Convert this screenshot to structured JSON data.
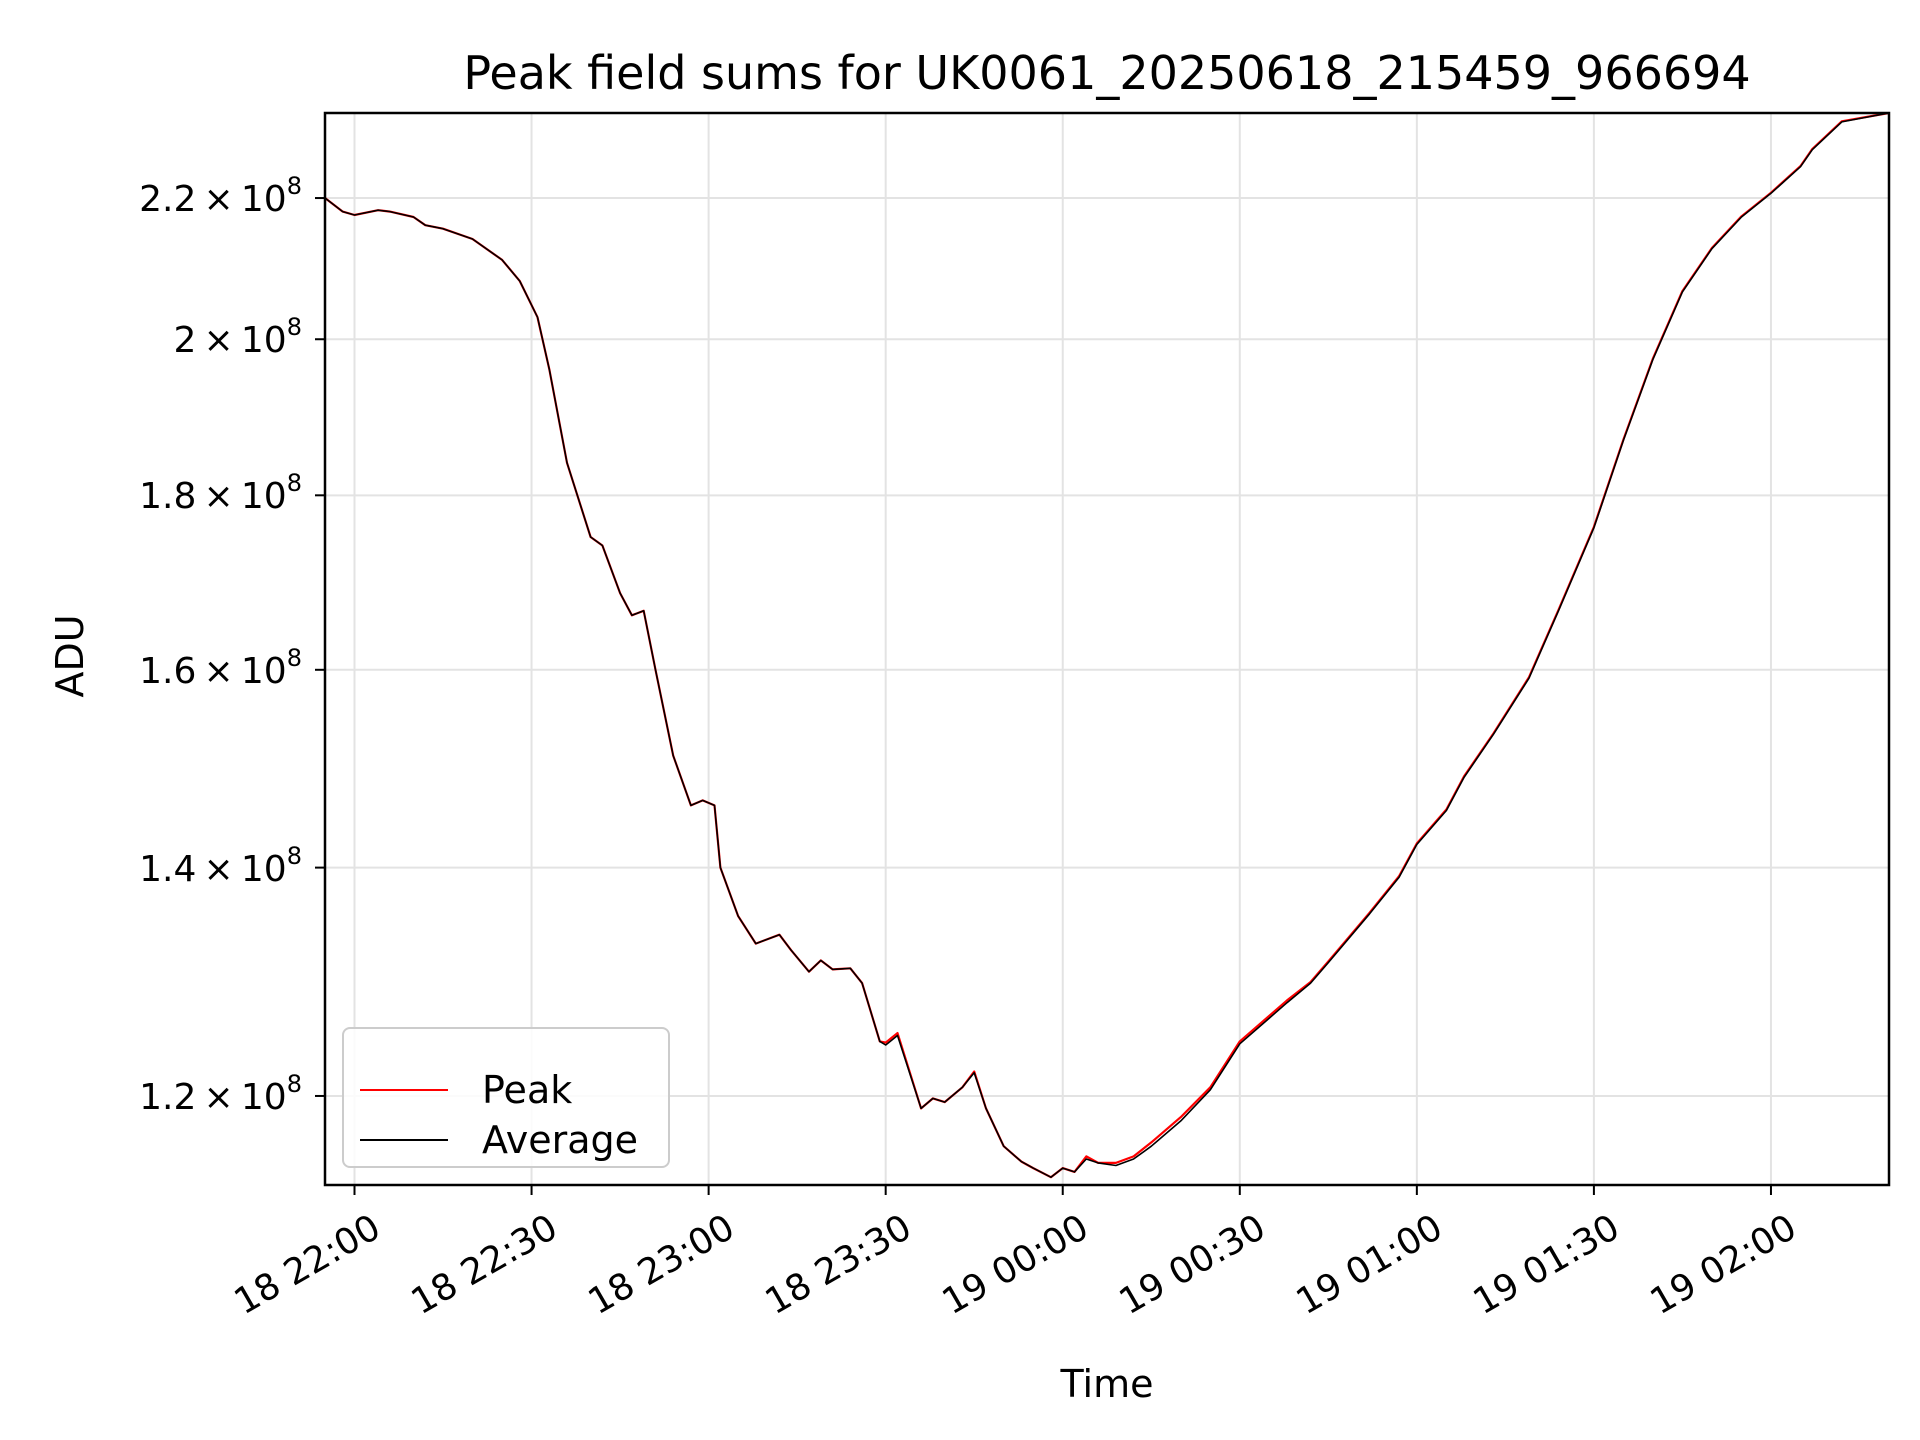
{
  "chart_data": {
    "type": "line",
    "title": "Peak field sums for UK0061_20250618_215459_966694",
    "xlabel": "Time",
    "ylabel": "ADU",
    "y_scale": "log",
    "xlim": [
      "2025-06-18 21:55",
      "2025-06-19 02:20"
    ],
    "ylim": [
      113000000,
      233000000
    ],
    "grid": true,
    "legend_position": "lower-left",
    "x_ticks": [
      {
        "time": "2025-06-18 22:00",
        "label": "18 22:00"
      },
      {
        "time": "2025-06-18 22:30",
        "label": "18 22:30"
      },
      {
        "time": "2025-06-18 23:00",
        "label": "18 23:00"
      },
      {
        "time": "2025-06-18 23:30",
        "label": "18 23:30"
      },
      {
        "time": "2025-06-19 00:00",
        "label": "19 00:00"
      },
      {
        "time": "2025-06-19 00:30",
        "label": "19 00:30"
      },
      {
        "time": "2025-06-19 01:00",
        "label": "19 01:00"
      },
      {
        "time": "2025-06-19 01:30",
        "label": "19 01:30"
      },
      {
        "time": "2025-06-19 02:00",
        "label": "19 02:00"
      }
    ],
    "y_ticks": [
      {
        "value": 120000000,
        "mantissa": "1.2",
        "base": "10",
        "exponent": "8"
      },
      {
        "value": 140000000,
        "mantissa": "1.4",
        "base": "10",
        "exponent": "8"
      },
      {
        "value": 160000000,
        "mantissa": "1.6",
        "base": "10",
        "exponent": "8"
      },
      {
        "value": 180000000,
        "mantissa": "1.8",
        "base": "10",
        "exponent": "8"
      },
      {
        "value": 200000000,
        "mantissa": "2",
        "base": "10",
        "exponent": "8"
      },
      {
        "value": 220000000,
        "mantissa": "2.2",
        "base": "10",
        "exponent": "8"
      }
    ],
    "x": [
      "2025-06-18 21:55",
      "2025-06-18 21:58",
      "2025-06-18 22:00",
      "2025-06-18 22:04",
      "2025-06-18 22:06",
      "2025-06-18 22:10",
      "2025-06-18 22:12",
      "2025-06-18 22:15",
      "2025-06-18 22:20",
      "2025-06-18 22:25",
      "2025-06-18 22:28",
      "2025-06-18 22:31",
      "2025-06-18 22:33",
      "2025-06-18 22:36",
      "2025-06-18 22:40",
      "2025-06-18 22:42",
      "2025-06-18 22:45",
      "2025-06-18 22:47",
      "2025-06-18 22:49",
      "2025-06-18 22:51",
      "2025-06-18 22:54",
      "2025-06-18 22:57",
      "2025-06-18 22:59",
      "2025-06-18 23:01",
      "2025-06-18 23:02",
      "2025-06-18 23:05",
      "2025-06-18 23:08",
      "2025-06-18 23:12",
      "2025-06-18 23:14",
      "2025-06-18 23:17",
      "2025-06-18 23:19",
      "2025-06-18 23:21",
      "2025-06-18 23:24",
      "2025-06-18 23:26",
      "2025-06-18 23:29",
      "2025-06-18 23:30",
      "2025-06-18 23:32",
      "2025-06-18 23:36",
      "2025-06-18 23:38",
      "2025-06-18 23:40",
      "2025-06-18 23:43",
      "2025-06-18 23:45",
      "2025-06-18 23:47",
      "2025-06-18 23:50",
      "2025-06-18 23:53",
      "2025-06-18 23:55",
      "2025-06-18 23:58",
      "2025-06-19 00:00",
      "2025-06-19 00:02",
      "2025-06-19 00:04",
      "2025-06-19 00:06",
      "2025-06-19 00:09",
      "2025-06-19 00:12",
      "2025-06-19 00:15",
      "2025-06-19 00:20",
      "2025-06-19 00:25",
      "2025-06-19 00:30",
      "2025-06-19 00:38",
      "2025-06-19 00:42",
      "2025-06-19 00:45",
      "2025-06-19 00:52",
      "2025-06-19 00:57",
      "2025-06-19 01:00",
      "2025-06-19 01:05",
      "2025-06-19 01:08",
      "2025-06-19 01:13",
      "2025-06-19 01:19",
      "2025-06-19 01:24",
      "2025-06-19 01:30",
      "2025-06-19 01:35",
      "2025-06-19 01:40",
      "2025-06-19 01:45",
      "2025-06-19 01:50",
      "2025-06-19 01:55",
      "2025-06-19 02:00",
      "2025-06-19 02:05",
      "2025-06-19 02:07",
      "2025-06-19 02:12",
      "2025-06-19 02:20"
    ],
    "series": [
      {
        "name": "Peak",
        "color": "#ff0000",
        "values": [
          220000000,
          218000000,
          217500000,
          218200000,
          218000000,
          217200000,
          216000000,
          215500000,
          214000000,
          211000000,
          208000000,
          203000000,
          196000000,
          184000000,
          175000000,
          174000000,
          168500000,
          166000000,
          166500000,
          160000000,
          151000000,
          146000000,
          146500000,
          146000000,
          140000000,
          135500000,
          133000000,
          133800000,
          132400000,
          130500000,
          131500000,
          130700000,
          130800000,
          129500000,
          124500000,
          124400000,
          125200000,
          119000000,
          119800000,
          119500000,
          120700000,
          122000000,
          119000000,
          116000000,
          114800000,
          114300000,
          113600000,
          114300000,
          114000000,
          115200000,
          114700000,
          114700000,
          115200000,
          116300000,
          118300000,
          120700000,
          124500000,
          128000000,
          129600000,
          131400000,
          135800000,
          139200000,
          142300000,
          145600000,
          148900000,
          153300000,
          159200000,
          166600000,
          176200000,
          186900000,
          197400000,
          206600000,
          212700000,
          217300000,
          220800000,
          224800000,
          227400000,
          231700000,
          233000000
        ]
      },
      {
        "name": "Average",
        "color": "#000000",
        "values": [
          220000000,
          218000000,
          217500000,
          218200000,
          218000000,
          217200000,
          216000000,
          215500000,
          214000000,
          211000000,
          208000000,
          203000000,
          196000000,
          184000000,
          175000000,
          174000000,
          168500000,
          166000000,
          166500000,
          160000000,
          151000000,
          146000000,
          146500000,
          146000000,
          140000000,
          135500000,
          133000000,
          133800000,
          132400000,
          130500000,
          131500000,
          130700000,
          130800000,
          129500000,
          124500000,
          124200000,
          125000000,
          119000000,
          119800000,
          119500000,
          120700000,
          121900000,
          119000000,
          116000000,
          114800000,
          114300000,
          113600000,
          114300000,
          114000000,
          115000000,
          114700000,
          114500000,
          115000000,
          116000000,
          118000000,
          120500000,
          124300000,
          127800000,
          129500000,
          131300000,
          135700000,
          139100000,
          142200000,
          145500000,
          148800000,
          153200000,
          159100000,
          166500000,
          176100000,
          186800000,
          197300000,
          206500000,
          212600000,
          217200000,
          220700000,
          224700000,
          227300000,
          231600000,
          233000000
        ]
      }
    ]
  }
}
